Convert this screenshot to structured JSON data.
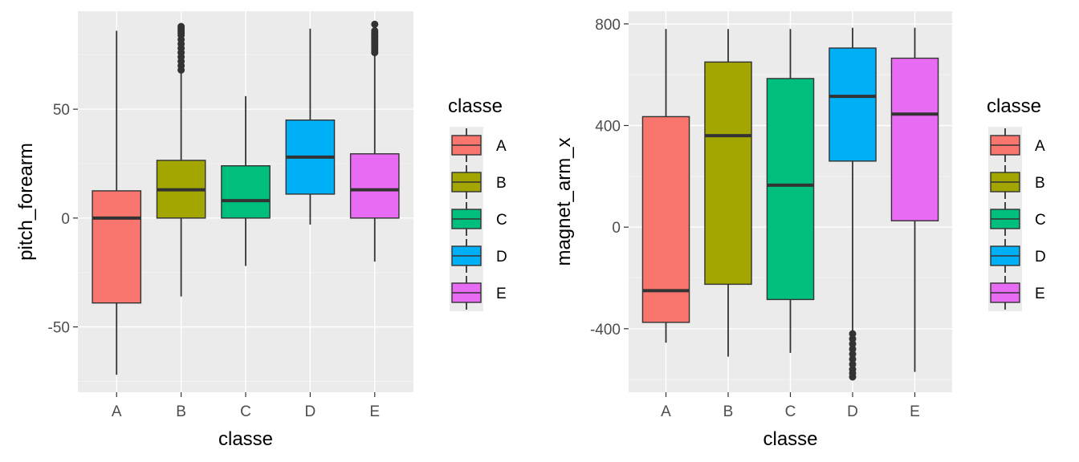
{
  "colors": {
    "A": "#F8766D",
    "B": "#A3A500",
    "C": "#00BF7D",
    "D": "#00B0F6",
    "E": "#E76BF3"
  },
  "chart_data": [
    {
      "type": "box",
      "xlabel": "classe",
      "ylabel": "pitch_forearm",
      "ylim": [
        -80,
        95
      ],
      "yticks": [
        -50,
        0,
        50
      ],
      "categories": [
        "A",
        "B",
        "C",
        "D",
        "E"
      ],
      "legend": {
        "title": "classe",
        "entries": [
          "A",
          "B",
          "C",
          "D",
          "E"
        ],
        "placement": "right"
      },
      "boxes": [
        {
          "category": "A",
          "min": -72,
          "q1": -39,
          "median": 0,
          "q3": 12.5,
          "max": 86,
          "outliers": []
        },
        {
          "category": "B",
          "min": -36,
          "q1": 0,
          "median": 13,
          "q3": 26.5,
          "max": 67,
          "outliers": [
            68,
            70,
            72,
            74,
            76,
            78,
            80,
            82,
            84,
            85,
            86,
            87,
            88
          ]
        },
        {
          "category": "C",
          "min": -22,
          "q1": 0,
          "median": 8,
          "q3": 24,
          "max": 56,
          "outliers": []
        },
        {
          "category": "D",
          "min": -3,
          "q1": 11,
          "median": 28,
          "q3": 45,
          "max": 87,
          "outliers": []
        },
        {
          "category": "E",
          "min": -20,
          "q1": 0,
          "median": 13,
          "q3": 29.5,
          "max": 75,
          "outliers": [
            76,
            77,
            78,
            79,
            80,
            81,
            82,
            83,
            84,
            85,
            86,
            89
          ]
        }
      ]
    },
    {
      "type": "box",
      "xlabel": "classe",
      "ylabel": "magnet_arm_x",
      "ylim": [
        -650,
        850
      ],
      "yticks": [
        -400,
        0,
        400,
        800
      ],
      "categories": [
        "A",
        "B",
        "C",
        "D",
        "E"
      ],
      "legend": {
        "title": "classe",
        "entries": [
          "A",
          "B",
          "C",
          "D",
          "E"
        ],
        "placement": "right"
      },
      "boxes": [
        {
          "category": "A",
          "min": -455,
          "q1": -375,
          "median": -250,
          "q3": 435,
          "max": 780,
          "outliers": []
        },
        {
          "category": "B",
          "min": -510,
          "q1": -225,
          "median": 360,
          "q3": 650,
          "max": 780,
          "outliers": []
        },
        {
          "category": "C",
          "min": -495,
          "q1": -285,
          "median": 165,
          "q3": 585,
          "max": 780,
          "outliers": []
        },
        {
          "category": "D",
          "min": -410,
          "q1": 260,
          "median": 515,
          "q3": 705,
          "max": 785,
          "outliers": [
            -420,
            -440,
            -460,
            -480,
            -500,
            -520,
            -540,
            -560,
            -575,
            -590
          ]
        },
        {
          "category": "E",
          "min": -570,
          "q1": 25,
          "median": 445,
          "q3": 665,
          "max": 785,
          "outliers": []
        }
      ]
    }
  ]
}
